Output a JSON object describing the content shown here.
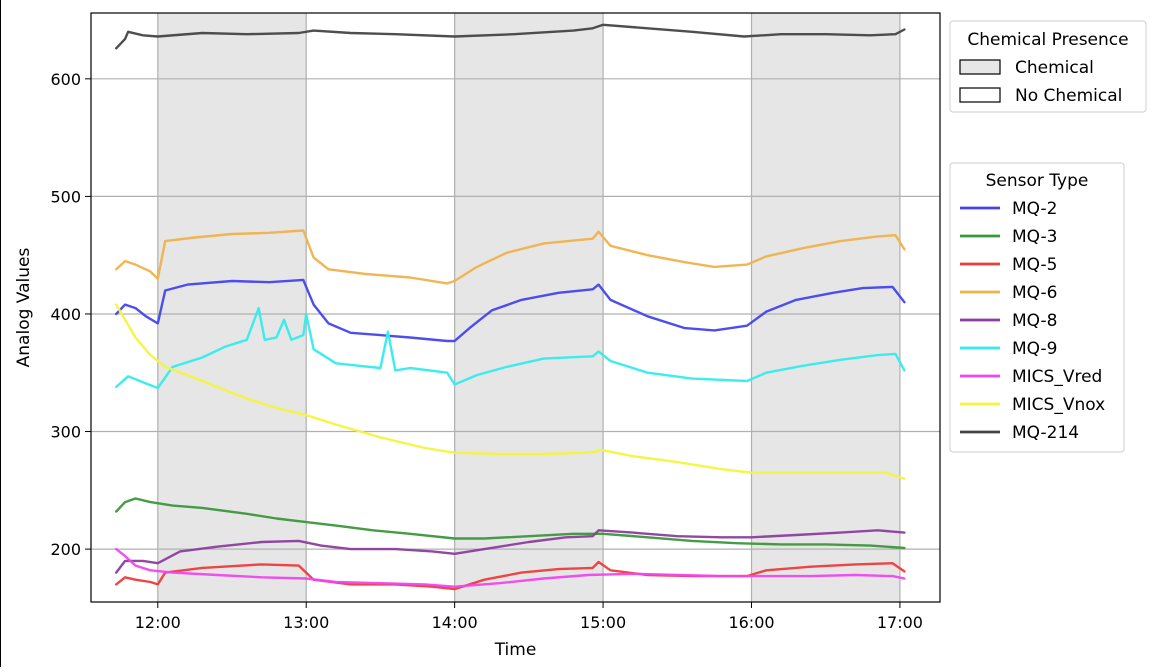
{
  "chart_data": {
    "type": "line",
    "title": "",
    "xlabel": "Time",
    "ylabel": "Analog Values",
    "x_unit": "hour of day",
    "xlim": [
      11.55,
      17.27
    ],
    "ylim": [
      155,
      656
    ],
    "grid": true,
    "x_ticks": [
      {
        "value": 12,
        "label": "12:00"
      },
      {
        "value": 13,
        "label": "13:00"
      },
      {
        "value": 14,
        "label": "14:00"
      },
      {
        "value": 15,
        "label": "15:00"
      },
      {
        "value": 16,
        "label": "16:00"
      },
      {
        "value": 17,
        "label": "17:00"
      }
    ],
    "y_ticks": [
      {
        "value": 200,
        "label": "200"
      },
      {
        "value": 300,
        "label": "300"
      },
      {
        "value": 400,
        "label": "400"
      },
      {
        "value": 500,
        "label": "500"
      },
      {
        "value": 600,
        "label": "600"
      }
    ],
    "shaded_regions": [
      {
        "label": "Chemical",
        "x_start": 12.0,
        "x_end": 13.0
      },
      {
        "label": "Chemical",
        "x_start": 14.0,
        "x_end": 15.0
      },
      {
        "label": "Chemical",
        "x_start": 16.0,
        "x_end": 17.0
      }
    ],
    "region_legend": {
      "title": "Chemical Presence",
      "placement": "outside top-right",
      "items": [
        {
          "label": "Chemical",
          "fill": "#e6e6e6"
        },
        {
          "label": "No Chemical",
          "fill": "#ffffff"
        }
      ]
    },
    "series_legend": {
      "title": "Sensor Type",
      "placement": "outside right"
    },
    "series": [
      {
        "name": "MQ-2",
        "color": "#4444ee",
        "points": [
          [
            11.72,
            400
          ],
          [
            11.78,
            408
          ],
          [
            11.85,
            405
          ],
          [
            11.92,
            398
          ],
          [
            12.0,
            392
          ],
          [
            12.05,
            420
          ],
          [
            12.2,
            425
          ],
          [
            12.5,
            428
          ],
          [
            12.75,
            427
          ],
          [
            12.98,
            429
          ],
          [
            13.05,
            408
          ],
          [
            13.15,
            392
          ],
          [
            13.3,
            384
          ],
          [
            13.5,
            382
          ],
          [
            13.7,
            380
          ],
          [
            13.95,
            377
          ],
          [
            14.0,
            377
          ],
          [
            14.1,
            388
          ],
          [
            14.25,
            403
          ],
          [
            14.45,
            412
          ],
          [
            14.7,
            418
          ],
          [
            14.93,
            421
          ],
          [
            14.97,
            425
          ],
          [
            15.05,
            412
          ],
          [
            15.3,
            398
          ],
          [
            15.55,
            388
          ],
          [
            15.75,
            386
          ],
          [
            15.97,
            390
          ],
          [
            16.1,
            402
          ],
          [
            16.3,
            412
          ],
          [
            16.55,
            418
          ],
          [
            16.75,
            422
          ],
          [
            16.95,
            423
          ],
          [
            17.03,
            410
          ]
        ]
      },
      {
        "name": "MQ-3",
        "color": "#3a973a",
        "points": [
          [
            11.72,
            232
          ],
          [
            11.78,
            240
          ],
          [
            11.85,
            243
          ],
          [
            11.95,
            240
          ],
          [
            12.1,
            237
          ],
          [
            12.3,
            235
          ],
          [
            12.6,
            230
          ],
          [
            12.8,
            226
          ],
          [
            13.0,
            223
          ],
          [
            13.2,
            220
          ],
          [
            13.45,
            216
          ],
          [
            13.7,
            213
          ],
          [
            14.0,
            209
          ],
          [
            14.2,
            209
          ],
          [
            14.5,
            211
          ],
          [
            14.8,
            213
          ],
          [
            15.0,
            213
          ],
          [
            15.3,
            210
          ],
          [
            15.6,
            207
          ],
          [
            15.9,
            205
          ],
          [
            16.2,
            204
          ],
          [
            16.5,
            204
          ],
          [
            16.8,
            203
          ],
          [
            17.03,
            201
          ]
        ]
      },
      {
        "name": "MQ-5",
        "color": "#ee3b3b",
        "points": [
          [
            11.72,
            170
          ],
          [
            11.78,
            176
          ],
          [
            11.85,
            174
          ],
          [
            11.95,
            172
          ],
          [
            12.0,
            170
          ],
          [
            12.05,
            180
          ],
          [
            12.3,
            184
          ],
          [
            12.7,
            187
          ],
          [
            12.95,
            186
          ],
          [
            13.05,
            174
          ],
          [
            13.3,
            170
          ],
          [
            13.6,
            170
          ],
          [
            13.85,
            168
          ],
          [
            14.0,
            166
          ],
          [
            14.2,
            174
          ],
          [
            14.45,
            180
          ],
          [
            14.7,
            183
          ],
          [
            14.93,
            184
          ],
          [
            14.97,
            189
          ],
          [
            15.05,
            182
          ],
          [
            15.3,
            178
          ],
          [
            15.6,
            177
          ],
          [
            15.97,
            177
          ],
          [
            16.1,
            182
          ],
          [
            16.4,
            185
          ],
          [
            16.7,
            187
          ],
          [
            16.95,
            188
          ],
          [
            17.03,
            181
          ]
        ]
      },
      {
        "name": "MQ-6",
        "color": "#f0b24a",
        "points": [
          [
            11.72,
            438
          ],
          [
            11.78,
            445
          ],
          [
            11.85,
            442
          ],
          [
            11.95,
            436
          ],
          [
            12.0,
            430
          ],
          [
            12.05,
            462
          ],
          [
            12.25,
            465
          ],
          [
            12.5,
            468
          ],
          [
            12.75,
            469
          ],
          [
            12.98,
            471
          ],
          [
            13.05,
            448
          ],
          [
            13.15,
            438
          ],
          [
            13.4,
            434
          ],
          [
            13.7,
            431
          ],
          [
            13.95,
            426
          ],
          [
            14.0,
            428
          ],
          [
            14.15,
            440
          ],
          [
            14.35,
            452
          ],
          [
            14.6,
            460
          ],
          [
            14.93,
            464
          ],
          [
            14.97,
            470
          ],
          [
            15.05,
            458
          ],
          [
            15.3,
            450
          ],
          [
            15.55,
            444
          ],
          [
            15.75,
            440
          ],
          [
            15.97,
            442
          ],
          [
            16.1,
            449
          ],
          [
            16.35,
            456
          ],
          [
            16.6,
            462
          ],
          [
            16.85,
            466
          ],
          [
            16.97,
            467
          ],
          [
            17.03,
            455
          ]
        ]
      },
      {
        "name": "MQ-8",
        "color": "#8b3e9e",
        "points": [
          [
            11.72,
            180
          ],
          [
            11.78,
            190
          ],
          [
            11.9,
            190
          ],
          [
            12.0,
            188
          ],
          [
            12.15,
            198
          ],
          [
            12.4,
            202
          ],
          [
            12.7,
            206
          ],
          [
            12.95,
            207
          ],
          [
            13.1,
            203
          ],
          [
            13.3,
            200
          ],
          [
            13.6,
            200
          ],
          [
            13.85,
            198
          ],
          [
            14.0,
            196
          ],
          [
            14.2,
            200
          ],
          [
            14.5,
            206
          ],
          [
            14.75,
            210
          ],
          [
            14.93,
            211
          ],
          [
            14.97,
            216
          ],
          [
            15.2,
            214
          ],
          [
            15.5,
            211
          ],
          [
            15.8,
            210
          ],
          [
            16.0,
            210
          ],
          [
            16.3,
            212
          ],
          [
            16.6,
            214
          ],
          [
            16.85,
            216
          ],
          [
            17.03,
            214
          ]
        ]
      },
      {
        "name": "MQ-9",
        "color": "#33ecec",
        "points": [
          [
            11.72,
            338
          ],
          [
            11.8,
            347
          ],
          [
            11.9,
            342
          ],
          [
            12.0,
            337
          ],
          [
            12.1,
            355
          ],
          [
            12.3,
            363
          ],
          [
            12.45,
            372
          ],
          [
            12.6,
            378
          ],
          [
            12.68,
            405
          ],
          [
            12.72,
            378
          ],
          [
            12.8,
            380
          ],
          [
            12.85,
            395
          ],
          [
            12.9,
            378
          ],
          [
            12.98,
            382
          ],
          [
            13.0,
            400
          ],
          [
            13.05,
            370
          ],
          [
            13.2,
            358
          ],
          [
            13.35,
            356
          ],
          [
            13.5,
            354
          ],
          [
            13.55,
            385
          ],
          [
            13.6,
            352
          ],
          [
            13.7,
            354
          ],
          [
            13.95,
            350
          ],
          [
            14.0,
            340
          ],
          [
            14.15,
            348
          ],
          [
            14.35,
            355
          ],
          [
            14.6,
            362
          ],
          [
            14.93,
            364
          ],
          [
            14.97,
            368
          ],
          [
            15.05,
            360
          ],
          [
            15.3,
            350
          ],
          [
            15.6,
            345
          ],
          [
            15.97,
            343
          ],
          [
            16.1,
            350
          ],
          [
            16.35,
            356
          ],
          [
            16.6,
            361
          ],
          [
            16.85,
            365
          ],
          [
            16.97,
            366
          ],
          [
            17.03,
            352
          ]
        ]
      },
      {
        "name": "MICS_Vred",
        "color": "#f046f0",
        "points": [
          [
            11.72,
            200
          ],
          [
            11.78,
            194
          ],
          [
            11.85,
            186
          ],
          [
            11.95,
            182
          ],
          [
            12.1,
            180
          ],
          [
            12.4,
            178
          ],
          [
            12.7,
            176
          ],
          [
            13.0,
            175
          ],
          [
            13.2,
            172
          ],
          [
            13.5,
            171
          ],
          [
            13.8,
            170
          ],
          [
            14.0,
            168
          ],
          [
            14.3,
            171
          ],
          [
            14.6,
            175
          ],
          [
            14.9,
            178
          ],
          [
            15.2,
            179
          ],
          [
            15.5,
            178
          ],
          [
            15.8,
            177
          ],
          [
            16.1,
            177
          ],
          [
            16.4,
            177
          ],
          [
            16.7,
            178
          ],
          [
            16.95,
            177
          ],
          [
            17.03,
            175
          ]
        ]
      },
      {
        "name": "MICS_Vnox",
        "color": "#f4f43c",
        "points": [
          [
            11.72,
            408
          ],
          [
            11.78,
            395
          ],
          [
            11.85,
            380
          ],
          [
            11.95,
            365
          ],
          [
            12.05,
            355
          ],
          [
            12.2,
            348
          ],
          [
            12.4,
            338
          ],
          [
            12.6,
            328
          ],
          [
            12.8,
            320
          ],
          [
            13.0,
            314
          ],
          [
            13.2,
            306
          ],
          [
            13.5,
            295
          ],
          [
            13.8,
            286
          ],
          [
            14.0,
            282
          ],
          [
            14.3,
            281
          ],
          [
            14.6,
            281
          ],
          [
            14.9,
            282
          ],
          [
            15.0,
            284
          ],
          [
            15.2,
            279
          ],
          [
            15.5,
            274
          ],
          [
            15.8,
            268
          ],
          [
            16.0,
            265
          ],
          [
            16.3,
            265
          ],
          [
            16.6,
            265
          ],
          [
            16.9,
            265
          ],
          [
            17.03,
            260
          ]
        ]
      },
      {
        "name": "MQ-214",
        "color": "#444444",
        "points": [
          [
            11.72,
            626
          ],
          [
            11.78,
            634
          ],
          [
            11.8,
            640
          ],
          [
            11.9,
            637
          ],
          [
            12.0,
            636
          ],
          [
            12.3,
            639
          ],
          [
            12.6,
            638
          ],
          [
            12.95,
            639
          ],
          [
            13.05,
            641
          ],
          [
            13.3,
            639
          ],
          [
            13.6,
            638
          ],
          [
            14.0,
            636
          ],
          [
            14.4,
            638
          ],
          [
            14.8,
            641
          ],
          [
            14.93,
            643
          ],
          [
            15.0,
            646
          ],
          [
            15.3,
            643
          ],
          [
            15.6,
            640
          ],
          [
            15.95,
            636
          ],
          [
            16.2,
            638
          ],
          [
            16.5,
            638
          ],
          [
            16.8,
            637
          ],
          [
            16.97,
            638
          ],
          [
            17.03,
            642
          ]
        ]
      }
    ]
  }
}
